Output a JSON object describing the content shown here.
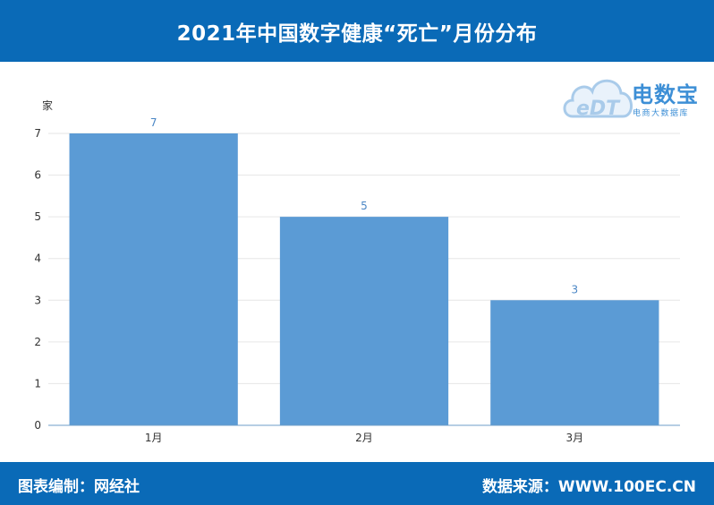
{
  "header": {
    "title": "2021年中国数字健康“死亡”月份分布"
  },
  "logo": {
    "name": "电数宝",
    "sub": "电商大数据库",
    "mark": "eDT"
  },
  "footer": {
    "credit": "图表编制：网经社",
    "source": "数据来源：WWW.100EC.CN"
  },
  "colors": {
    "header_bg": "#0a6ab7",
    "bar": "#5b9bd5",
    "value_label": "#4a86c5"
  },
  "chart_data": {
    "type": "bar",
    "title": "2021年中国数字健康“死亡”月份分布",
    "ylabel": "家",
    "xlabel": "",
    "categories": [
      "1月",
      "2月",
      "3月"
    ],
    "values": [
      7,
      5,
      3
    ],
    "ylim": [
      0,
      7
    ],
    "yticks": [
      0,
      1,
      2,
      3,
      4,
      5,
      6,
      7
    ],
    "grid": true,
    "data_labels": true
  }
}
